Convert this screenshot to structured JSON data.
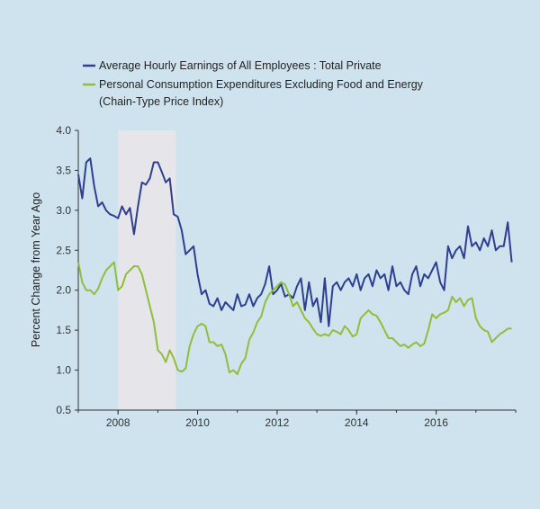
{
  "chart_data": {
    "type": "line",
    "title": "",
    "xlabel": "",
    "ylabel": "Percent Change from Year Ago",
    "xlim": [
      2007.0,
      2018.0
    ],
    "ylim": [
      0.5,
      4.0
    ],
    "yticks": [
      "0.5",
      "1.0",
      "1.5",
      "2.0",
      "2.5",
      "3.0",
      "3.5",
      "4.0"
    ],
    "xticks": [
      "2008",
      "2010",
      "2012",
      "2014",
      "2016"
    ],
    "recession": {
      "start": 2008.0,
      "end": 2009.45
    },
    "legend": {
      "placement": "top-left",
      "items": [
        {
          "name": "Average Hourly Earnings of All Employees : Total Private",
          "color": "#2e3f8f"
        },
        {
          "name": "Personal Consumption Expenditures Excluding Food and Energy",
          "name_line2": "(Chain-Type Price Index)",
          "color": "#8fbe3a"
        }
      ]
    },
    "series": [
      {
        "name": "Average Hourly Earnings of All Employees : Total Private",
        "color": "#2e3f8f",
        "x": [
          2007.0,
          2007.1,
          2007.2,
          2007.3,
          2007.4,
          2007.5,
          2007.6,
          2007.7,
          2007.8,
          2007.9,
          2008.0,
          2008.1,
          2008.2,
          2008.3,
          2008.4,
          2008.5,
          2008.6,
          2008.7,
          2008.8,
          2008.9,
          2009.0,
          2009.1,
          2009.2,
          2009.3,
          2009.4,
          2009.5,
          2009.6,
          2009.7,
          2009.8,
          2009.9,
          2010.0,
          2010.1,
          2010.2,
          2010.3,
          2010.4,
          2010.5,
          2010.6,
          2010.7,
          2010.8,
          2010.9,
          2011.0,
          2011.1,
          2011.2,
          2011.3,
          2011.4,
          2011.5,
          2011.6,
          2011.7,
          2011.8,
          2011.9,
          2012.0,
          2012.1,
          2012.2,
          2012.3,
          2012.4,
          2012.5,
          2012.6,
          2012.7,
          2012.8,
          2012.9,
          2013.0,
          2013.1,
          2013.2,
          2013.3,
          2013.4,
          2013.5,
          2013.6,
          2013.7,
          2013.8,
          2013.9,
          2014.0,
          2014.1,
          2014.2,
          2014.3,
          2014.4,
          2014.5,
          2014.6,
          2014.7,
          2014.8,
          2014.9,
          2015.0,
          2015.1,
          2015.2,
          2015.3,
          2015.4,
          2015.5,
          2015.6,
          2015.7,
          2015.8,
          2015.9,
          2016.0,
          2016.1,
          2016.2,
          2016.3,
          2016.4,
          2016.5,
          2016.6,
          2016.7,
          2016.8,
          2016.9,
          2017.0,
          2017.1,
          2017.2,
          2017.3,
          2017.4,
          2017.5,
          2017.6,
          2017.7,
          2017.8,
          2017.9
        ],
        "values": [
          3.45,
          3.15,
          3.6,
          3.65,
          3.3,
          3.05,
          3.1,
          3.0,
          2.95,
          2.93,
          2.9,
          3.05,
          2.95,
          3.03,
          2.7,
          3.05,
          3.35,
          3.32,
          3.4,
          3.6,
          3.6,
          3.48,
          3.35,
          3.4,
          2.95,
          2.92,
          2.75,
          2.45,
          2.5,
          2.55,
          2.2,
          1.95,
          2.0,
          1.83,
          1.8,
          1.9,
          1.75,
          1.85,
          1.8,
          1.75,
          1.95,
          1.8,
          1.82,
          1.95,
          1.8,
          1.9,
          1.95,
          2.08,
          2.3,
          1.95,
          2.0,
          2.08,
          1.92,
          1.95,
          1.9,
          2.05,
          2.15,
          1.75,
          2.1,
          1.8,
          1.9,
          1.6,
          2.15,
          1.55,
          2.05,
          2.1,
          2.0,
          2.1,
          2.15,
          2.05,
          2.2,
          2.0,
          2.15,
          2.2,
          2.05,
          2.25,
          2.15,
          2.2,
          2.0,
          2.3,
          2.05,
          2.1,
          2.0,
          1.95,
          2.2,
          2.3,
          2.05,
          2.2,
          2.15,
          2.25,
          2.35,
          2.1,
          2.0,
          2.55,
          2.4,
          2.5,
          2.55,
          2.4,
          2.8,
          2.55,
          2.6,
          2.5,
          2.65,
          2.55,
          2.75,
          2.5,
          2.55,
          2.55,
          2.85,
          2.35
        ]
      },
      {
        "name": "Personal Consumption Expenditures Excluding Food and Energy (Chain-Type Price Index)",
        "color": "#8fbe3a",
        "x": [
          2007.0,
          2007.1,
          2007.2,
          2007.3,
          2007.4,
          2007.5,
          2007.6,
          2007.7,
          2007.8,
          2007.9,
          2008.0,
          2008.1,
          2008.2,
          2008.3,
          2008.4,
          2008.5,
          2008.6,
          2008.7,
          2008.8,
          2008.9,
          2009.0,
          2009.1,
          2009.2,
          2009.3,
          2009.4,
          2009.5,
          2009.6,
          2009.7,
          2009.8,
          2009.9,
          2010.0,
          2010.1,
          2010.2,
          2010.3,
          2010.4,
          2010.5,
          2010.6,
          2010.7,
          2010.8,
          2010.9,
          2011.0,
          2011.1,
          2011.2,
          2011.3,
          2011.4,
          2011.5,
          2011.6,
          2011.7,
          2011.8,
          2011.9,
          2012.0,
          2012.1,
          2012.2,
          2012.3,
          2012.4,
          2012.5,
          2012.6,
          2012.7,
          2012.8,
          2012.9,
          2013.0,
          2013.1,
          2013.2,
          2013.3,
          2013.4,
          2013.5,
          2013.6,
          2013.7,
          2013.8,
          2013.9,
          2014.0,
          2014.1,
          2014.2,
          2014.3,
          2014.4,
          2014.5,
          2014.6,
          2014.7,
          2014.8,
          2014.9,
          2015.0,
          2015.1,
          2015.2,
          2015.3,
          2015.4,
          2015.5,
          2015.6,
          2015.7,
          2015.8,
          2015.9,
          2016.0,
          2016.1,
          2016.2,
          2016.3,
          2016.4,
          2016.5,
          2016.6,
          2016.7,
          2016.8,
          2016.9,
          2017.0,
          2017.1,
          2017.2,
          2017.3,
          2017.4,
          2017.5,
          2017.6,
          2017.7,
          2017.8,
          2017.9
        ],
        "values": [
          2.35,
          2.1,
          2.0,
          2.0,
          1.95,
          2.02,
          2.15,
          2.25,
          2.3,
          2.35,
          2.0,
          2.05,
          2.2,
          2.25,
          2.3,
          2.3,
          2.2,
          2.0,
          1.8,
          1.6,
          1.25,
          1.2,
          1.1,
          1.25,
          1.15,
          1.0,
          0.98,
          1.02,
          1.3,
          1.45,
          1.55,
          1.58,
          1.55,
          1.35,
          1.35,
          1.3,
          1.32,
          1.2,
          0.97,
          1.0,
          0.95,
          1.08,
          1.15,
          1.38,
          1.47,
          1.6,
          1.67,
          1.85,
          1.95,
          2.0,
          2.05,
          2.1,
          2.07,
          1.95,
          1.8,
          1.85,
          1.75,
          1.65,
          1.6,
          1.52,
          1.45,
          1.43,
          1.45,
          1.43,
          1.5,
          1.48,
          1.45,
          1.55,
          1.5,
          1.42,
          1.45,
          1.65,
          1.7,
          1.75,
          1.7,
          1.68,
          1.6,
          1.5,
          1.4,
          1.4,
          1.35,
          1.3,
          1.32,
          1.28,
          1.32,
          1.35,
          1.3,
          1.33,
          1.5,
          1.7,
          1.65,
          1.7,
          1.72,
          1.75,
          1.92,
          1.85,
          1.9,
          1.8,
          1.88,
          1.9,
          1.65,
          1.55,
          1.5,
          1.48,
          1.35,
          1.4,
          1.45,
          1.48,
          1.52,
          1.52
        ]
      }
    ]
  }
}
